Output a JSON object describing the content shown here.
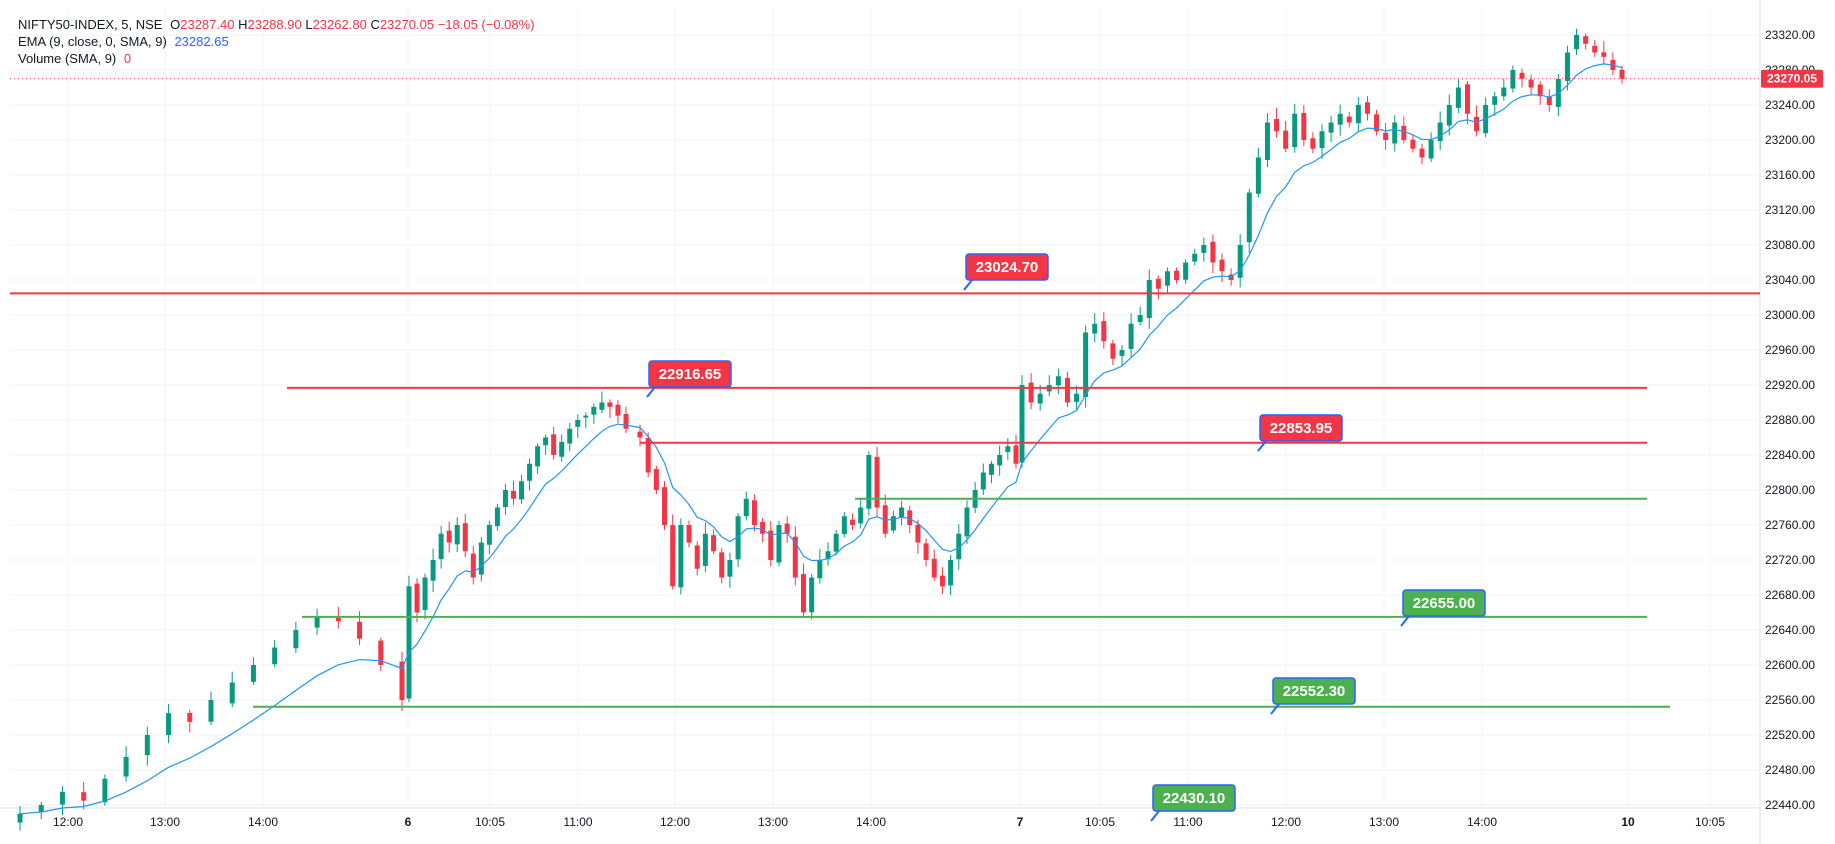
{
  "header": {
    "symbol": "NIFTY50-INDEX, 5, NSE",
    "o_label": "O",
    "o_value": "23287.40",
    "h_label": "H",
    "h_value": "23288.90",
    "l_label": "L",
    "l_value": "23262.80",
    "c_label": "C",
    "c_value": "23270.05",
    "change": "−18.05 (−0.08%)",
    "ema_label": "EMA (9, close, 0, SMA, 9)",
    "ema_value": "23282.65",
    "volume_label": "Volume (SMA, 9)",
    "volume_value": "0"
  },
  "chart_data": {
    "type": "candlestick",
    "symbol": "NIFTY50-INDEX",
    "interval": "5",
    "exchange": "NSE",
    "ylim": [
      22440,
      23340
    ],
    "y_ticks": [
      22440,
      22480,
      22520,
      22560,
      22600,
      22640,
      22680,
      22720,
      22760,
      22800,
      22840,
      22880,
      22920,
      22960,
      23000,
      23040,
      23080,
      23120,
      23160,
      23200,
      23240,
      23280,
      23320
    ],
    "x_tick_labels": [
      {
        "label": "12:00",
        "bold": false
      },
      {
        "label": "13:00",
        "bold": false
      },
      {
        "label": "14:00",
        "bold": false
      },
      {
        "label": "6",
        "bold": true
      },
      {
        "label": "10:05",
        "bold": false
      },
      {
        "label": "11:00",
        "bold": false
      },
      {
        "label": "12:00",
        "bold": false
      },
      {
        "label": "13:00",
        "bold": false
      },
      {
        "label": "14:00",
        "bold": false
      },
      {
        "label": "7",
        "bold": true
      },
      {
        "label": "10:05",
        "bold": false
      },
      {
        "label": "11:00",
        "bold": false
      },
      {
        "label": "12:00",
        "bold": false
      },
      {
        "label": "13:00",
        "bold": false
      },
      {
        "label": "14:00",
        "bold": false
      },
      {
        "label": "10",
        "bold": true
      },
      {
        "label": "10:05",
        "bold": false
      }
    ],
    "last_price": 23270.05,
    "last_price_label": "23270.05",
    "ema_period": 9,
    "colors": {
      "up": "#089981",
      "down": "#f23645",
      "ema": "#2196f3",
      "support": "#4caf50",
      "resistance": "#f23645"
    },
    "candles_close": [
      22430,
      22440,
      22455,
      22445,
      22470,
      22495,
      22520,
      22545,
      22535,
      22560,
      22580,
      22600,
      22620,
      22640,
      22655,
      22650,
      22630,
      22600,
      22560,
      22690,
      22660,
      22700,
      22720,
      22750,
      22740,
      22760,
      22730,
      22700,
      22740,
      22760,
      22780,
      22800,
      22790,
      22810,
      22830,
      22850,
      22860,
      22840,
      22855,
      22870,
      22880,
      22885,
      22895,
      22900,
      22895,
      22885,
      22870,
      22860,
      22820,
      22800,
      22760,
      22690,
      22760,
      22740,
      22710,
      22750,
      22730,
      22700,
      22720,
      22770,
      22790,
      22760,
      22750,
      22720,
      22760,
      22750,
      22700,
      22660,
      22700,
      22720,
      22730,
      22750,
      22770,
      22760,
      22780,
      22840,
      22780,
      22750,
      22770,
      22780,
      22760,
      22740,
      22720,
      22700,
      22690,
      22720,
      22750,
      22780,
      22800,
      22820,
      22830,
      22840,
      22850,
      22830,
      22920,
      22900,
      22910,
      22920,
      22930,
      22900,
      22910,
      22980,
      22990,
      22970,
      22950,
      22960,
      22990,
      23000,
      23040,
      23030,
      23050,
      23040,
      23060,
      23070,
      23080,
      23060,
      23050,
      23040,
      23080,
      23140,
      23180,
      23220,
      23210,
      23190,
      23230,
      23200,
      23190,
      23210,
      23220,
      23230,
      23220,
      23240,
      23230,
      23210,
      23200,
      23220,
      23200,
      23190,
      23180,
      23200,
      23220,
      23240,
      23260,
      23230,
      23210,
      23240,
      23250,
      23260,
      23280,
      23270,
      23260,
      23250,
      23240,
      23270,
      23300,
      23320,
      23310,
      23300,
      23295,
      23280,
      23270
    ],
    "levels": [
      {
        "price": 23024.7,
        "label": "23024.70",
        "kind": "resistance"
      },
      {
        "price": 22916.65,
        "label": "22916.65",
        "kind": "resistance"
      },
      {
        "price": 22853.95,
        "label": "22853.95",
        "kind": "resistance"
      },
      {
        "price": 22790.0,
        "label": "",
        "kind": "support"
      },
      {
        "price": 22655.0,
        "label": "22655.00",
        "kind": "support"
      },
      {
        "price": 22552.3,
        "label": "22552.30",
        "kind": "support"
      },
      {
        "price": 22430.1,
        "label": "22430.10",
        "kind": "support"
      }
    ]
  }
}
